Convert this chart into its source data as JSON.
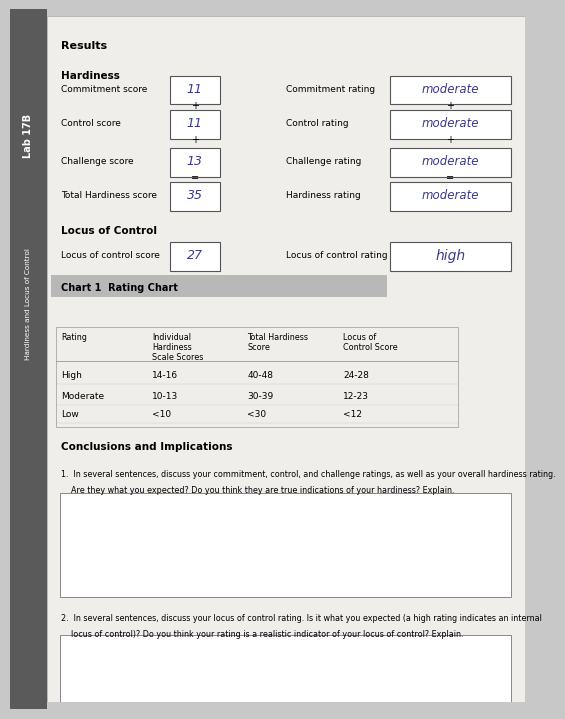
{
  "bg_color": "#c8c8c8",
  "page_color": "#f0eeeb",
  "sidebar_color": "#5a5a5a",
  "sidebar_text": "Lab 17B",
  "sidebar_text2": "Hardiness and Locus of Control",
  "results_section": {
    "title": "Results",
    "hardiness_label": "Hardiness",
    "rows": [
      {
        "label": "Commitment score",
        "value": "11",
        "rating_label": "Commitment rating",
        "rating_value": "moderate"
      },
      {
        "label": "Control score",
        "value": "11",
        "rating_label": "Control rating",
        "rating_value": "moderate"
      },
      {
        "label": "Challenge score",
        "value": "13",
        "rating_label": "Challenge rating",
        "rating_value": "moderate"
      },
      {
        "label": "Total Hardiness score",
        "value": "35",
        "rating_label": "Hardiness rating",
        "rating_value": "moderate"
      }
    ],
    "locus_label": "Locus of Control",
    "locus_score_label": "Locus of control score",
    "locus_score_value": "27",
    "locus_rating_label": "Locus of control rating",
    "locus_rating_value": "high"
  },
  "chart_section": {
    "title": "Chart 1  Rating Chart",
    "headers": [
      "Rating",
      "Individual\nHardiness\nScale Scores",
      "Total Hardiness\nScore",
      "Locus of\nControl Score"
    ],
    "rows": [
      [
        "High",
        "14-16",
        "40-48",
        "24-28"
      ],
      [
        "Moderate",
        "10-13",
        "30-39",
        "12-23"
      ],
      [
        "Low",
        "<10",
        "<30",
        "<12"
      ]
    ]
  },
  "conclusions_section": {
    "title": "Conclusions and Implications",
    "q1_line1": "1.  In several sentences, discuss your commitment, control, and challenge ratings, as well as your overall hardiness rating.",
    "q1_line2": "    Are they what you expected? Do you think they are true indications of your hardiness? Explain.",
    "q2_line1": "2.  In several sentences, discuss your locus of control rating. Is it what you expected (a high rating indicates an internal",
    "q2_line2": "    locus of control)? Do you think your rating is a realistic indicator of your locus of control? Explain."
  },
  "handwritten_color": "#3a3a8a",
  "box_color": "#ffffff",
  "box_border": "#555555"
}
